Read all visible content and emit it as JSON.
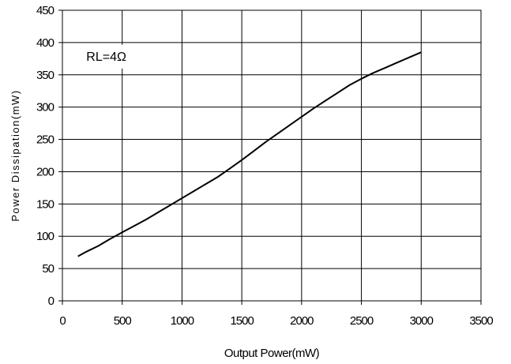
{
  "chart_data": {
    "type": "line",
    "xlabel": "Output Power(mW)",
    "ylabel": "Power Dissipation(mW)",
    "xlim": [
      0,
      3500
    ],
    "ylim": [
      0,
      450
    ],
    "x_ticks": [
      0,
      500,
      1000,
      1500,
      2000,
      2500,
      3000,
      3500
    ],
    "y_ticks": [
      0,
      50,
      100,
      150,
      200,
      250,
      300,
      350,
      400,
      450
    ],
    "grid": true,
    "annotation": "RL=4Ω",
    "series": [
      {
        "color": "#000000",
        "x": [
          130,
          200,
          300,
          400,
          500,
          600,
          700,
          800,
          900,
          1000,
          1100,
          1200,
          1300,
          1400,
          1500,
          1600,
          1700,
          1800,
          1900,
          2000,
          2100,
          2200,
          2300,
          2400,
          2500,
          2600,
          2700,
          2800,
          2900,
          3000
        ],
        "y": [
          69,
          76,
          85,
          96,
          106,
          116,
          126,
          137,
          148,
          159,
          170,
          181,
          192,
          205,
          218,
          232,
          246,
          259,
          272,
          285,
          298,
          310,
          322,
          334,
          344,
          353,
          361,
          369,
          377,
          385
        ]
      }
    ]
  }
}
